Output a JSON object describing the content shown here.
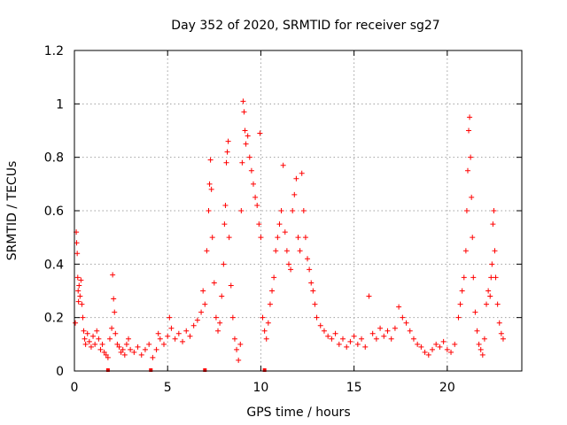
{
  "chart_data": {
    "type": "scatter",
    "title": "Day 352 of 2020, SRMTID for receiver sg27",
    "xlabel": "GPS time / hours",
    "ylabel": "SRMTID / TECUs",
    "xlim": [
      0,
      24
    ],
    "ylim": [
      0,
      1.2
    ],
    "xticks": [
      0,
      5,
      10,
      15,
      20
    ],
    "xtick_labels": [
      "0",
      "5",
      "10",
      "15",
      "20"
    ],
    "yticks": [
      0,
      0.2,
      0.4,
      0.6,
      0.8,
      1.0,
      1.2
    ],
    "ytick_labels": [
      "0",
      "0.2",
      "0.4",
      "0.6",
      "0.8",
      "1",
      "1.2"
    ],
    "grid": true,
    "marker": "plus",
    "color": "#ff0000",
    "series": [
      {
        "name": "SRMTID",
        "points": [
          [
            0.05,
            0.18
          ],
          [
            0.1,
            0.52
          ],
          [
            0.12,
            0.48
          ],
          [
            0.15,
            0.44
          ],
          [
            0.18,
            0.35
          ],
          [
            0.2,
            0.3
          ],
          [
            0.22,
            0.26
          ],
          [
            0.25,
            0.32
          ],
          [
            0.3,
            0.28
          ],
          [
            0.35,
            0.34
          ],
          [
            0.4,
            0.25
          ],
          [
            0.45,
            0.2
          ],
          [
            0.5,
            0.15
          ],
          [
            0.55,
            0.12
          ],
          [
            0.6,
            0.1
          ],
          [
            0.7,
            0.14
          ],
          [
            0.8,
            0.11
          ],
          [
            0.9,
            0.09
          ],
          [
            1.0,
            0.13
          ],
          [
            1.1,
            0.1
          ],
          [
            1.2,
            0.15
          ],
          [
            1.3,
            0.12
          ],
          [
            1.4,
            0.08
          ],
          [
            1.5,
            0.1
          ],
          [
            1.6,
            0.07
          ],
          [
            1.7,
            0.06
          ],
          [
            1.8,
            0.05
          ],
          [
            1.9,
            0.12
          ],
          [
            2.0,
            0.16
          ],
          [
            2.05,
            0.36
          ],
          [
            2.1,
            0.27
          ],
          [
            2.15,
            0.22
          ],
          [
            2.2,
            0.14
          ],
          [
            2.3,
            0.1
          ],
          [
            2.4,
            0.09
          ],
          [
            2.5,
            0.07
          ],
          [
            2.6,
            0.08
          ],
          [
            2.7,
            0.06
          ],
          [
            2.8,
            0.1
          ],
          [
            2.9,
            0.12
          ],
          [
            3.0,
            0.08
          ],
          [
            3.2,
            0.07
          ],
          [
            3.4,
            0.09
          ],
          [
            3.6,
            0.06
          ],
          [
            3.8,
            0.08
          ],
          [
            4.0,
            0.1
          ],
          [
            4.2,
            0.05
          ],
          [
            4.4,
            0.08
          ],
          [
            4.5,
            0.14
          ],
          [
            4.6,
            0.12
          ],
          [
            4.8,
            0.1
          ],
          [
            5.0,
            0.13
          ],
          [
            5.1,
            0.2
          ],
          [
            5.2,
            0.16
          ],
          [
            5.4,
            0.12
          ],
          [
            5.6,
            0.14
          ],
          [
            5.8,
            0.11
          ],
          [
            6.0,
            0.15
          ],
          [
            6.2,
            0.13
          ],
          [
            6.4,
            0.17
          ],
          [
            6.6,
            0.19
          ],
          [
            6.8,
            0.22
          ],
          [
            6.9,
            0.3
          ],
          [
            7.0,
            0.25
          ],
          [
            7.1,
            0.45
          ],
          [
            7.2,
            0.6
          ],
          [
            7.25,
            0.7
          ],
          [
            7.3,
            0.79
          ],
          [
            7.35,
            0.68
          ],
          [
            7.4,
            0.5
          ],
          [
            7.5,
            0.33
          ],
          [
            7.6,
            0.2
          ],
          [
            7.7,
            0.15
          ],
          [
            7.8,
            0.18
          ],
          [
            7.9,
            0.28
          ],
          [
            8.0,
            0.4
          ],
          [
            8.05,
            0.55
          ],
          [
            8.1,
            0.62
          ],
          [
            8.15,
            0.78
          ],
          [
            8.2,
            0.82
          ],
          [
            8.25,
            0.86
          ],
          [
            8.3,
            0.5
          ],
          [
            8.4,
            0.32
          ],
          [
            8.5,
            0.2
          ],
          [
            8.6,
            0.12
          ],
          [
            8.7,
            0.08
          ],
          [
            8.8,
            0.04
          ],
          [
            8.9,
            0.1
          ],
          [
            8.95,
            0.6
          ],
          [
            9.0,
            0.78
          ],
          [
            9.05,
            1.01
          ],
          [
            9.1,
            0.97
          ],
          [
            9.15,
            0.9
          ],
          [
            9.2,
            0.85
          ],
          [
            9.3,
            0.88
          ],
          [
            9.4,
            0.8
          ],
          [
            9.5,
            0.75
          ],
          [
            9.6,
            0.7
          ],
          [
            9.7,
            0.65
          ],
          [
            9.8,
            0.62
          ],
          [
            9.9,
            0.55
          ],
          [
            9.95,
            0.89
          ],
          [
            10.0,
            0.5
          ],
          [
            10.1,
            0.2
          ],
          [
            10.2,
            0.15
          ],
          [
            10.3,
            0.12
          ],
          [
            10.4,
            0.18
          ],
          [
            10.5,
            0.25
          ],
          [
            10.6,
            0.3
          ],
          [
            10.7,
            0.35
          ],
          [
            10.8,
            0.45
          ],
          [
            10.9,
            0.5
          ],
          [
            11.0,
            0.55
          ],
          [
            11.1,
            0.6
          ],
          [
            11.2,
            0.77
          ],
          [
            11.3,
            0.52
          ],
          [
            11.4,
            0.45
          ],
          [
            11.5,
            0.4
          ],
          [
            11.6,
            0.38
          ],
          [
            11.7,
            0.6
          ],
          [
            11.8,
            0.66
          ],
          [
            11.9,
            0.72
          ],
          [
            12.0,
            0.5
          ],
          [
            12.1,
            0.45
          ],
          [
            12.2,
            0.74
          ],
          [
            12.3,
            0.6
          ],
          [
            12.4,
            0.5
          ],
          [
            12.5,
            0.42
          ],
          [
            12.6,
            0.38
          ],
          [
            12.7,
            0.33
          ],
          [
            12.8,
            0.3
          ],
          [
            12.9,
            0.25
          ],
          [
            13.0,
            0.2
          ],
          [
            13.2,
            0.17
          ],
          [
            13.4,
            0.15
          ],
          [
            13.6,
            0.13
          ],
          [
            13.8,
            0.12
          ],
          [
            14.0,
            0.14
          ],
          [
            14.2,
            0.1
          ],
          [
            14.4,
            0.12
          ],
          [
            14.6,
            0.09
          ],
          [
            14.8,
            0.11
          ],
          [
            15.0,
            0.13
          ],
          [
            15.2,
            0.1
          ],
          [
            15.4,
            0.12
          ],
          [
            15.6,
            0.09
          ],
          [
            15.8,
            0.28
          ],
          [
            16.0,
            0.14
          ],
          [
            16.2,
            0.12
          ],
          [
            16.4,
            0.16
          ],
          [
            16.6,
            0.13
          ],
          [
            16.8,
            0.15
          ],
          [
            17.0,
            0.12
          ],
          [
            17.2,
            0.16
          ],
          [
            17.4,
            0.24
          ],
          [
            17.6,
            0.2
          ],
          [
            17.8,
            0.18
          ],
          [
            18.0,
            0.15
          ],
          [
            18.2,
            0.12
          ],
          [
            18.4,
            0.1
          ],
          [
            18.6,
            0.09
          ],
          [
            18.8,
            0.07
          ],
          [
            19.0,
            0.06
          ],
          [
            19.2,
            0.08
          ],
          [
            19.4,
            0.1
          ],
          [
            19.6,
            0.09
          ],
          [
            19.8,
            0.11
          ],
          [
            20.0,
            0.08
          ],
          [
            20.2,
            0.07
          ],
          [
            20.4,
            0.1
          ],
          [
            20.6,
            0.2
          ],
          [
            20.7,
            0.25
          ],
          [
            20.8,
            0.3
          ],
          [
            20.9,
            0.35
          ],
          [
            21.0,
            0.45
          ],
          [
            21.05,
            0.6
          ],
          [
            21.1,
            0.75
          ],
          [
            21.15,
            0.9
          ],
          [
            21.2,
            0.95
          ],
          [
            21.25,
            0.8
          ],
          [
            21.3,
            0.65
          ],
          [
            21.35,
            0.5
          ],
          [
            21.4,
            0.35
          ],
          [
            21.5,
            0.22
          ],
          [
            21.6,
            0.15
          ],
          [
            21.7,
            0.1
          ],
          [
            21.8,
            0.08
          ],
          [
            21.9,
            0.06
          ],
          [
            22.0,
            0.12
          ],
          [
            22.1,
            0.25
          ],
          [
            22.2,
            0.3
          ],
          [
            22.3,
            0.28
          ],
          [
            22.35,
            0.35
          ],
          [
            22.4,
            0.4
          ],
          [
            22.45,
            0.55
          ],
          [
            22.5,
            0.6
          ],
          [
            22.55,
            0.45
          ],
          [
            22.6,
            0.35
          ],
          [
            22.7,
            0.25
          ],
          [
            22.8,
            0.18
          ],
          [
            22.9,
            0.14
          ],
          [
            23.0,
            0.12
          ]
        ]
      }
    ],
    "baseline_markers_x": [
      1.8,
      4.1,
      7.0,
      10.2
    ]
  }
}
